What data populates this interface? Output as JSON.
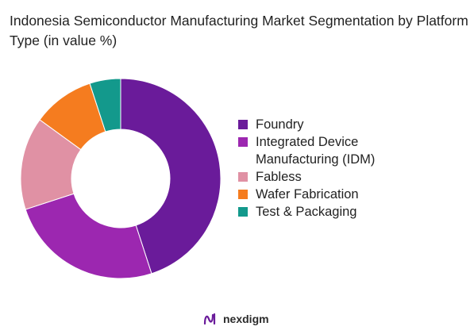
{
  "title": "Indonesia Semiconductor Manufacturing Market Segmentation by Platform Type (in value %)",
  "brand": {
    "name": "nexdigm",
    "icon": "nexdigm-logo-icon"
  },
  "chart_data": {
    "type": "pie",
    "donut": true,
    "title": "Indonesia Semiconductor Manufacturing Market Segmentation by Platform Type (in value %)",
    "legend_position": "right",
    "categories": [
      "Foundry",
      "Integrated Device Manufacturing (IDM)",
      "Fabless",
      "Wafer Fabrication",
      "Test & Packaging"
    ],
    "values": [
      45,
      25,
      15,
      10,
      5
    ],
    "colors": [
      "#6a1b9a",
      "#9c27b0",
      "#e091a4",
      "#f57c1f",
      "#13998c"
    ]
  }
}
